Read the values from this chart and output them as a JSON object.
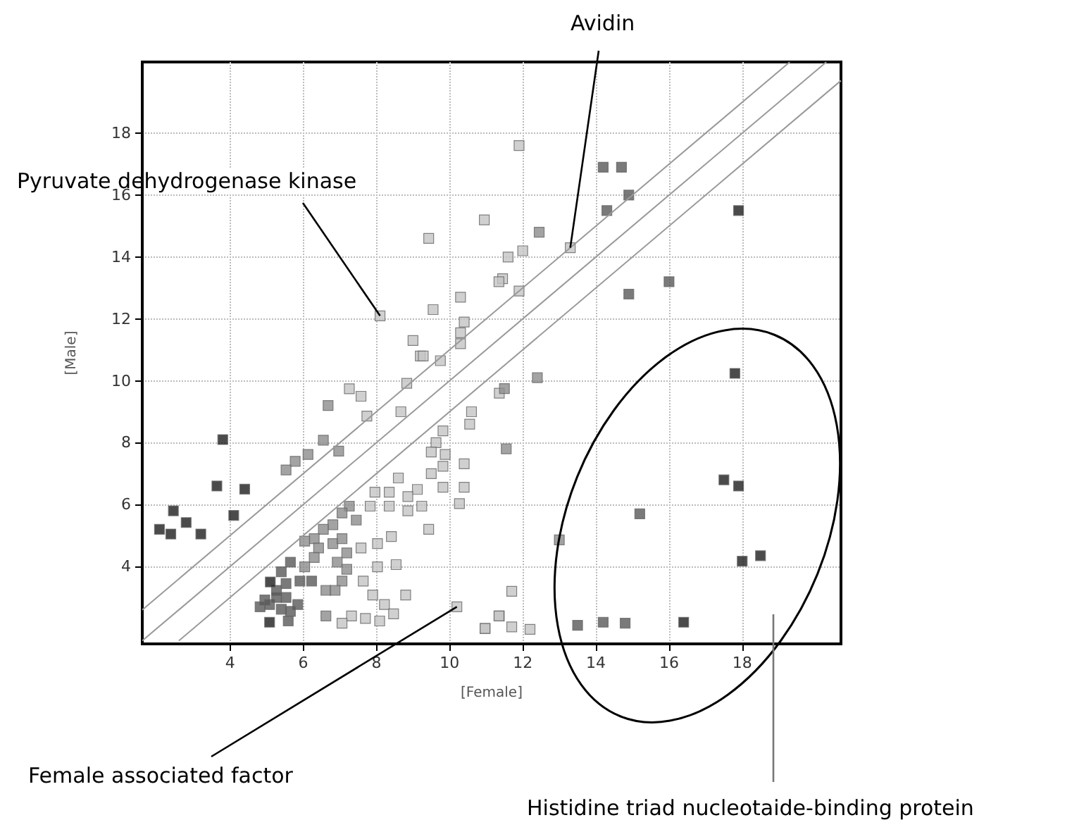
{
  "chart_data": {
    "type": "scatter",
    "xlabel": "[Female]",
    "ylabel": "[Male]",
    "xlim": [
      1.6,
      20.7
    ],
    "ylim": [
      1.5,
      20.3
    ],
    "xticks": [
      4,
      6,
      8,
      10,
      12,
      14,
      16,
      18
    ],
    "yticks": [
      4,
      6,
      8,
      10,
      12,
      14,
      16,
      18
    ],
    "grid": true,
    "marker": "square",
    "annotations": [
      {
        "text": "Avidin",
        "x": 13.3,
        "y": 14.3
      },
      {
        "text": "Pyruvate dehydrogenase kinase",
        "x": 8.1,
        "y": 12.1
      },
      {
        "text": "Female associated factor",
        "x": 10.2,
        "y": 2.7
      },
      "Histidine triad nucleotaide-binding protein"
    ],
    "series": [
      {
        "type": "line",
        "marker": "none",
        "color": "#999999",
        "x": [
          1.6,
          19.3
        ],
        "values": [
          2.6,
          20.3
        ]
      },
      {
        "type": "line",
        "marker": "none",
        "color": "#999999",
        "x": [
          1.6,
          20.3
        ],
        "values": [
          1.6,
          20.3
        ]
      },
      {
        "type": "line",
        "marker": "none",
        "color": "#999999",
        "x": [
          2.6,
          20.7
        ],
        "values": [
          1.6,
          19.7
        ]
      },
      {
        "color": "#c4c4c4",
        "x": [
          13.3,
          12.0,
          11.6,
          11.45,
          11.9,
          11.9,
          10.95,
          9.43,
          8.1,
          10.3,
          9.55,
          10.4,
          10.3,
          9.0,
          9.2,
          9.75,
          10.3,
          11.35,
          7.26,
          7.58,
          7.74,
          8.83,
          8.67,
          9.28,
          10.6,
          10.55,
          9.82,
          9.63,
          9.5,
          9.88,
          9.82,
          10.4,
          10.4,
          9.82,
          9.5,
          9.12,
          8.6,
          8.35,
          7.96,
          7.83,
          8.35,
          8.86,
          9.24,
          8.86,
          10.27,
          11.36,
          9.43,
          8.41,
          8.03,
          7.58,
          8.54,
          8.03,
          7.64,
          7.9,
          8.22,
          8.8,
          8.47,
          8.09,
          7.7,
          7.32,
          7.06,
          10.2,
          10.97,
          11.36,
          11.7,
          11.35,
          11.7,
          12.2,
          10.97
        ],
        "values": [
          14.3,
          14.2,
          14.0,
          13.3,
          12.9,
          17.6,
          15.2,
          14.6,
          12.1,
          12.7,
          12.3,
          11.9,
          11.55,
          11.3,
          10.8,
          10.65,
          11.2,
          13.2,
          9.74,
          9.5,
          8.86,
          9.92,
          9.0,
          10.8,
          9.0,
          8.6,
          8.38,
          8.0,
          7.7,
          7.62,
          7.24,
          7.32,
          6.56,
          6.56,
          7.0,
          6.49,
          6.86,
          6.4,
          6.4,
          5.95,
          5.95,
          6.26,
          5.95,
          5.8,
          6.03,
          9.6,
          5.2,
          4.97,
          4.74,
          4.6,
          4.06,
          3.99,
          3.53,
          3.08,
          2.77,
          3.08,
          2.47,
          2.24,
          2.32,
          2.4,
          2.17,
          2.7,
          2.0,
          2.4,
          3.2,
          2.4,
          2.05,
          1.97,
          2.0
        ]
      },
      {
        "color": "#8c8c8c",
        "x": [
          6.68,
          6.55,
          6.97,
          6.13,
          5.78,
          5.53,
          12.45,
          12.4,
          11.5,
          11.55,
          13.0,
          7.26,
          7.06,
          6.81,
          6.55,
          6.3,
          6.04,
          6.42,
          6.81,
          7.06,
          7.19,
          6.93,
          7.19,
          6.3,
          6.04,
          7.06,
          6.62,
          6.87,
          6.62,
          7.45
        ],
        "values": [
          9.2,
          8.08,
          7.73,
          7.62,
          7.4,
          7.12,
          14.8,
          10.1,
          9.75,
          7.8,
          4.86,
          5.95,
          5.73,
          5.35,
          5.2,
          4.9,
          4.82,
          4.6,
          4.74,
          4.9,
          4.44,
          4.14,
          3.91,
          4.29,
          3.99,
          3.53,
          3.23,
          3.23,
          2.4,
          5.5
        ]
      },
      {
        "color": "#595959",
        "x": [
          5.65,
          5.4,
          5.53,
          5.27,
          4.95,
          4.82,
          5.08,
          5.4,
          5.27,
          5.53,
          5.85,
          5.59,
          5.65,
          5.91,
          6.23,
          16.0,
          14.9,
          14.9,
          14.7,
          14.2,
          14.3,
          13.5,
          14.2,
          14.8,
          15.2
        ],
        "values": [
          4.14,
          3.83,
          3.45,
          3.23,
          2.92,
          2.7,
          2.77,
          2.62,
          3.0,
          3.0,
          2.77,
          2.24,
          2.55,
          3.53,
          3.53,
          13.2,
          12.8,
          16.0,
          16.9,
          16.9,
          15.5,
          2.1,
          2.2,
          2.17,
          5.7
        ]
      },
      {
        "color": "#1e1e1e",
        "x": [
          2.07,
          2.38,
          2.45,
          2.8,
          3.2,
          3.64,
          3.8,
          4.1,
          4.4,
          5.08,
          5.1,
          17.8,
          17.5,
          17.9,
          18.0,
          18.5,
          16.4,
          17.9
        ],
        "values": [
          5.2,
          5.05,
          5.8,
          5.42,
          5.05,
          6.6,
          8.1,
          5.65,
          6.5,
          2.2,
          3.5,
          10.24,
          6.8,
          6.6,
          4.17,
          4.35,
          2.2,
          15.5
        ]
      }
    ]
  }
}
